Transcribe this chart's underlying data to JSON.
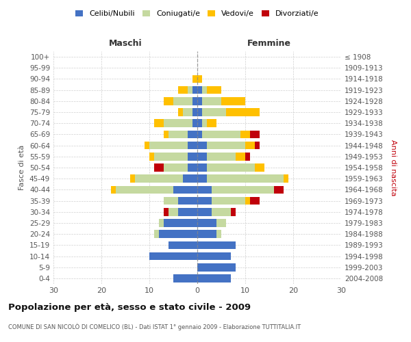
{
  "age_groups": [
    "0-4",
    "5-9",
    "10-14",
    "15-19",
    "20-24",
    "25-29",
    "30-34",
    "35-39",
    "40-44",
    "45-49",
    "50-54",
    "55-59",
    "60-64",
    "65-69",
    "70-74",
    "75-79",
    "80-84",
    "85-89",
    "90-94",
    "95-99",
    "100+"
  ],
  "birth_years": [
    "2004-2008",
    "1999-2003",
    "1994-1998",
    "1989-1993",
    "1984-1988",
    "1979-1983",
    "1974-1978",
    "1969-1973",
    "1964-1968",
    "1959-1963",
    "1954-1958",
    "1949-1953",
    "1944-1948",
    "1939-1943",
    "1934-1938",
    "1929-1933",
    "1924-1928",
    "1919-1923",
    "1914-1918",
    "1909-1913",
    "≤ 1908"
  ],
  "maschi": {
    "celibi": [
      5,
      0,
      10,
      6,
      8,
      7,
      4,
      4,
      5,
      3,
      2,
      2,
      2,
      2,
      1,
      1,
      1,
      1,
      0,
      0,
      0
    ],
    "coniugati": [
      0,
      0,
      0,
      0,
      1,
      1,
      2,
      3,
      12,
      10,
      5,
      7,
      8,
      4,
      6,
      2,
      4,
      1,
      0,
      0,
      0
    ],
    "vedovi": [
      0,
      0,
      0,
      0,
      0,
      0,
      0,
      0,
      1,
      1,
      0,
      1,
      1,
      1,
      2,
      1,
      2,
      2,
      1,
      0,
      0
    ],
    "divorziati": [
      0,
      0,
      0,
      0,
      0,
      0,
      1,
      0,
      0,
      0,
      2,
      0,
      0,
      0,
      0,
      0,
      0,
      0,
      0,
      0,
      0
    ]
  },
  "femmine": {
    "nubili": [
      7,
      8,
      7,
      8,
      4,
      4,
      3,
      3,
      3,
      2,
      2,
      2,
      2,
      1,
      1,
      1,
      1,
      1,
      0,
      0,
      0
    ],
    "coniugate": [
      0,
      0,
      0,
      0,
      1,
      2,
      4,
      7,
      13,
      16,
      10,
      6,
      8,
      8,
      1,
      5,
      4,
      1,
      0,
      0,
      0
    ],
    "vedove": [
      0,
      0,
      0,
      0,
      0,
      0,
      0,
      1,
      0,
      1,
      2,
      2,
      2,
      2,
      2,
      7,
      5,
      3,
      1,
      0,
      0
    ],
    "divorziate": [
      0,
      0,
      0,
      0,
      0,
      0,
      1,
      2,
      2,
      0,
      0,
      1,
      1,
      2,
      0,
      0,
      0,
      0,
      0,
      0,
      0
    ]
  },
  "colors": {
    "celibi": "#4472C4",
    "coniugati": "#c5d9a0",
    "vedovi": "#ffc000",
    "divorziati": "#c0000b"
  },
  "xlim": 30,
  "title": "Popolazione per età, sesso e stato civile - 2009",
  "subtitle": "COMUNE DI SAN NICOLÒ DI COMELICO (BL) - Dati ISTAT 1° gennaio 2009 - Elaborazione TUTTITALIA.IT",
  "ylabel_left": "Fasce di età",
  "ylabel_right": "Anni di nascita",
  "xlabel_left": "Maschi",
  "xlabel_right": "Femmine",
  "bg_color": "#ffffff",
  "grid_color": "#bbbbbb"
}
